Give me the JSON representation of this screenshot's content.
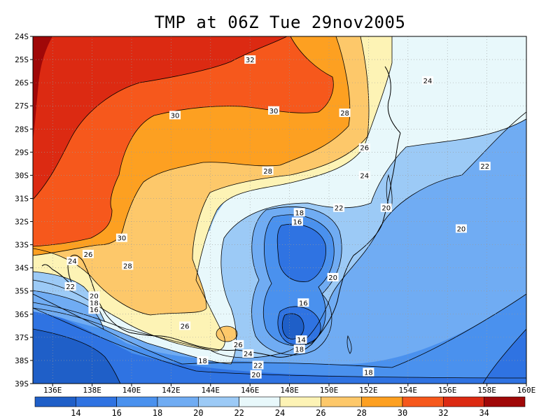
{
  "title": "TMP at 06Z Tue 29nov2005",
  "axes": {
    "lon_labels": [
      "136E",
      "138E",
      "140E",
      "142E",
      "144E",
      "146E",
      "148E",
      "150E",
      "152E",
      "154E",
      "156E",
      "158E",
      "160E"
    ],
    "lat_labels": [
      "24S",
      "25S",
      "26S",
      "27S",
      "28S",
      "29S",
      "30S",
      "31S",
      "32S",
      "33S",
      "34S",
      "35S",
      "36S",
      "37S",
      "38S",
      "39S"
    ]
  },
  "contour_labels": [
    {
      "text": "32",
      "lon": 146.0,
      "lat": -25.0
    },
    {
      "text": "30",
      "lon": 142.2,
      "lat": -27.4
    },
    {
      "text": "30",
      "lon": 147.2,
      "lat": -27.2
    },
    {
      "text": "28",
      "lon": 150.8,
      "lat": -27.3
    },
    {
      "text": "26",
      "lon": 151.8,
      "lat": -28.8
    },
    {
      "text": "24",
      "lon": 155.0,
      "lat": -25.9
    },
    {
      "text": "28",
      "lon": 146.9,
      "lat": -29.8
    },
    {
      "text": "24",
      "lon": 151.8,
      "lat": -30.0
    },
    {
      "text": "22",
      "lon": 157.9,
      "lat": -29.6
    },
    {
      "text": "22",
      "lon": 150.5,
      "lat": -31.4
    },
    {
      "text": "18",
      "lon": 148.5,
      "lat": -31.6
    },
    {
      "text": "16",
      "lon": 148.4,
      "lat": -32.0
    },
    {
      "text": "20",
      "lon": 152.9,
      "lat": -31.4
    },
    {
      "text": "20",
      "lon": 156.7,
      "lat": -32.3
    },
    {
      "text": "30",
      "lon": 139.5,
      "lat": -32.7
    },
    {
      "text": "26",
      "lon": 137.8,
      "lat": -33.4
    },
    {
      "text": "24",
      "lon": 137.0,
      "lat": -33.7
    },
    {
      "text": "28",
      "lon": 139.8,
      "lat": -33.9
    },
    {
      "text": "22",
      "lon": 136.9,
      "lat": -34.8
    },
    {
      "text": "20",
      "lon": 150.2,
      "lat": -34.4
    },
    {
      "text": "20",
      "lon": 138.1,
      "lat": -35.2
    },
    {
      "text": "18",
      "lon": 138.1,
      "lat": -35.5
    },
    {
      "text": "16",
      "lon": 138.1,
      "lat": -35.8
    },
    {
      "text": "16",
      "lon": 148.7,
      "lat": -35.5
    },
    {
      "text": "26",
      "lon": 142.7,
      "lat": -36.5
    },
    {
      "text": "14",
      "lon": 148.6,
      "lat": -37.1
    },
    {
      "text": "26",
      "lon": 145.4,
      "lat": -37.3
    },
    {
      "text": "18",
      "lon": 148.5,
      "lat": -37.5
    },
    {
      "text": "24",
      "lon": 145.9,
      "lat": -37.7
    },
    {
      "text": "18",
      "lon": 143.6,
      "lat": -38.0
    },
    {
      "text": "22",
      "lon": 146.4,
      "lat": -38.2
    },
    {
      "text": "20",
      "lon": 146.3,
      "lat": -38.6
    },
    {
      "text": "18",
      "lon": 152.0,
      "lat": -38.5
    }
  ],
  "colorbar": {
    "labels": [
      "14",
      "16",
      "18",
      "20",
      "22",
      "24",
      "26",
      "28",
      "30",
      "32",
      "34"
    ],
    "colors": [
      "#1f5fc8",
      "#2f73e2",
      "#4a91ee",
      "#70acf3",
      "#9ccaf6",
      "#e8f8fb",
      "#fdf3b5",
      "#fdc86a",
      "#fda021",
      "#f6581c",
      "#dc2a12",
      "#a00808"
    ]
  }
}
